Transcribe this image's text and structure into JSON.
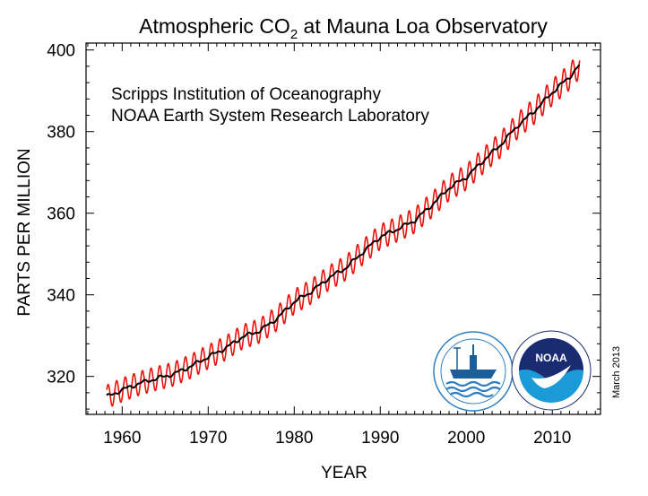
{
  "chart_data": {
    "type": "line",
    "title": "Atmospheric CO",
    "title_subscript": "2",
    "title_suffix": " at Mauna Loa Observatory",
    "xlabel": "YEAR",
    "ylabel": "PARTS PER MILLION",
    "xlim": [
      1955.8,
      2015.6
    ],
    "ylim": [
      310.7,
      401.7
    ],
    "xticks": [
      1960,
      1970,
      1980,
      1990,
      2000,
      2010
    ],
    "yticks": [
      320,
      340,
      360,
      380,
      400
    ],
    "grid": false,
    "annotations": [
      "Scripps Institution of Oceanography",
      "NOAA Earth System Research Laboratory"
    ],
    "date_stamp": "March 2013",
    "series": [
      {
        "color": "#e8120c",
        "kind": "monthly_mean",
        "x_start": 1958.21,
        "x_end": 2013.17,
        "seasonal_amplitude": 3.2,
        "seasonal_peak_phase": 0.36
      },
      {
        "color": "#000000",
        "kind": "seasonally_adjusted",
        "x": [
          1958.2,
          1960,
          1962,
          1964,
          1966,
          1968,
          1970,
          1972,
          1974,
          1976,
          1978,
          1980,
          1982,
          1984,
          1986,
          1988,
          1990,
          1992,
          1994,
          1996,
          1998,
          2000,
          2002,
          2004,
          2006,
          2008,
          2010,
          2012,
          2013.17
        ],
        "y": [
          315.0,
          316.7,
          318.3,
          319.5,
          320.6,
          322.5,
          324.8,
          326.9,
          329.7,
          331.2,
          334.2,
          338.3,
          340.8,
          344.1,
          346.6,
          350.5,
          354.2,
          356.1,
          358.2,
          362.0,
          366.2,
          368.8,
          372.9,
          376.8,
          381.5,
          385.2,
          389.6,
          393.4,
          396.3
        ]
      }
    ]
  },
  "logos": {
    "scripps": {
      "name": "scripps-logo-icon",
      "colors": [
        "#2f7fc0",
        "#1a5e9a"
      ]
    },
    "noaa": {
      "name": "noaa-logo-icon",
      "text": "NOAA",
      "colors": [
        "#1a2b72",
        "#1a9ad6"
      ]
    }
  }
}
